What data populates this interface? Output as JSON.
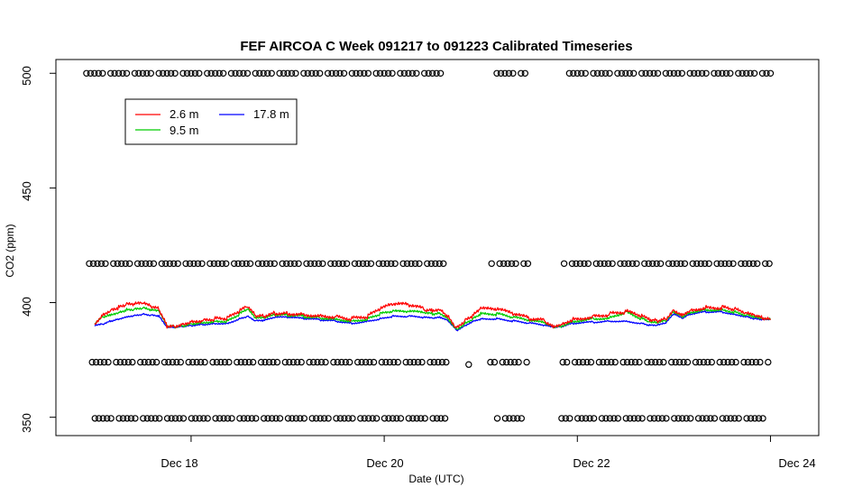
{
  "chart_data": {
    "type": "line",
    "title": "FEF AIRCOA C  Week 091217 to 091223  Calibrated Timeseries",
    "xlabel": "Date (UTC)",
    "ylabel": "CO2 (ppm)",
    "x_unit": "date (UTC)",
    "xlim": [
      "Dec 16 14:24",
      "Dec 24 12:00"
    ],
    "ylim": [
      342,
      506
    ],
    "x_ticks": [
      {
        "t": "Dec 18 00:00",
        "label": "Dec 18"
      },
      {
        "t": "Dec 20 00:00",
        "label": "Dec 20"
      },
      {
        "t": "Dec 22 00:00",
        "label": "Dec 22"
      },
      {
        "t": "Dec 24 00:00",
        "label": "Dec 24"
      }
    ],
    "y_ticks": [
      350,
      400,
      450,
      500
    ],
    "legend": {
      "position": "top-left",
      "entries": [
        {
          "label": "2.6 m",
          "color": "#ff0000"
        },
        {
          "label": "9.5 m",
          "color": "#00cc00"
        },
        {
          "label": "17.8 m",
          "color": "#0000ff"
        }
      ]
    },
    "series": [
      {
        "name": "17.8 m",
        "color": "#0000ff",
        "points": [
          [
            "Dec 17 00:00",
            390
          ],
          [
            "Dec 17 02:00",
            390.5
          ],
          [
            "Dec 17 04:00",
            392
          ],
          [
            "Dec 17 06:00",
            393
          ],
          [
            "Dec 17 08:00",
            394
          ],
          [
            "Dec 17 10:00",
            394.5
          ],
          [
            "Dec 17 12:00",
            395
          ],
          [
            "Dec 17 14:00",
            394.5
          ],
          [
            "Dec 17 16:00",
            394
          ],
          [
            "Dec 17 18:00",
            389
          ],
          [
            "Dec 17 20:00",
            389
          ],
          [
            "Dec 17 22:00",
            389.5
          ],
          [
            "Dec 18 00:00",
            390
          ],
          [
            "Dec 18 03:00",
            390.5
          ],
          [
            "Dec 18 06:00",
            391
          ],
          [
            "Dec 18 09:00",
            391
          ],
          [
            "Dec 18 12:00",
            393
          ],
          [
            "Dec 18 14:00",
            394
          ],
          [
            "Dec 18 16:00",
            392
          ],
          [
            "Dec 18 18:00",
            392
          ],
          [
            "Dec 18 21:00",
            393.5
          ],
          [
            "Dec 19 00:00",
            393.5
          ],
          [
            "Dec 19 04:00",
            393
          ],
          [
            "Dec 19 08:00",
            392.5
          ],
          [
            "Dec 19 12:00",
            392
          ],
          [
            "Dec 19 16:00",
            391
          ],
          [
            "Dec 19 20:00",
            392
          ],
          [
            "Dec 19 23:00",
            393
          ],
          [
            "Dec 20 02:00",
            394
          ],
          [
            "Dec 20 06:00",
            394
          ],
          [
            "Dec 20 10:00",
            393.5
          ],
          [
            "Dec 20 12:00",
            393
          ],
          [
            "Dec 20 14:00",
            393.5
          ],
          [
            "Dec 20 16:00",
            392
          ],
          [
            "Dec 20 18:00",
            388
          ],
          [
            "Dec 20 20:00",
            390
          ],
          [
            "Dec 20 22:00",
            392
          ],
          [
            "Dec 21 00:00",
            393
          ],
          [
            "Dec 21 04:00",
            393
          ],
          [
            "Dec 21 08:00",
            392
          ],
          [
            "Dec 21 12:00",
            391
          ],
          [
            "Dec 21 16:00",
            390
          ],
          [
            "Dec 21 18:00",
            389
          ],
          [
            "Dec 21 20:00",
            389.5
          ],
          [
            "Dec 21 23:00",
            391
          ],
          [
            "Dec 22 04:00",
            391.5
          ],
          [
            "Dec 22 08:00",
            392
          ],
          [
            "Dec 22 12:00",
            392
          ],
          [
            "Dec 22 16:00",
            391
          ],
          [
            "Dec 22 18:00",
            390
          ],
          [
            "Dec 22 20:00",
            390
          ],
          [
            "Dec 22 22:00",
            391
          ],
          [
            "Dec 23 00:00",
            395
          ],
          [
            "Dec 23 02:00",
            393
          ],
          [
            "Dec 23 04:00",
            395
          ],
          [
            "Dec 23 08:00",
            396
          ],
          [
            "Dec 23 12:00",
            396
          ],
          [
            "Dec 23 15:00",
            395
          ],
          [
            "Dec 23 18:00",
            394
          ],
          [
            "Dec 23 20:00",
            393
          ],
          [
            "Dec 23 22:00",
            392.5
          ],
          [
            "Dec 24 00:00",
            392.5
          ]
        ]
      },
      {
        "name": "9.5 m",
        "color": "#00cc00",
        "points": [
          [
            "Dec 17 00:00",
            391
          ],
          [
            "Dec 17 02:00",
            394
          ],
          [
            "Dec 17 04:00",
            395
          ],
          [
            "Dec 17 06:00",
            396
          ],
          [
            "Dec 17 08:00",
            397
          ],
          [
            "Dec 17 10:00",
            397
          ],
          [
            "Dec 17 12:00",
            397.5
          ],
          [
            "Dec 17 14:00",
            396.5
          ],
          [
            "Dec 17 16:00",
            396
          ],
          [
            "Dec 17 18:00",
            389.5
          ],
          [
            "Dec 17 20:00",
            389.5
          ],
          [
            "Dec 17 22:00",
            390
          ],
          [
            "Dec 18 00:00",
            391
          ],
          [
            "Dec 18 03:00",
            391.5
          ],
          [
            "Dec 18 06:00",
            392
          ],
          [
            "Dec 18 09:00",
            392
          ],
          [
            "Dec 18 12:00",
            395
          ],
          [
            "Dec 18 14:00",
            397
          ],
          [
            "Dec 18 16:00",
            393
          ],
          [
            "Dec 18 18:00",
            393
          ],
          [
            "Dec 18 21:00",
            394.5
          ],
          [
            "Dec 19 00:00",
            394.5
          ],
          [
            "Dec 19 04:00",
            394
          ],
          [
            "Dec 19 08:00",
            393.5
          ],
          [
            "Dec 19 12:00",
            393
          ],
          [
            "Dec 19 16:00",
            392
          ],
          [
            "Dec 19 20:00",
            393
          ],
          [
            "Dec 19 23:00",
            395
          ],
          [
            "Dec 20 02:00",
            396
          ],
          [
            "Dec 20 06:00",
            396
          ],
          [
            "Dec 20 10:00",
            395.5
          ],
          [
            "Dec 20 12:00",
            395
          ],
          [
            "Dec 20 14:00",
            395.5
          ],
          [
            "Dec 20 16:00",
            393
          ],
          [
            "Dec 20 18:00",
            388.5
          ],
          [
            "Dec 20 20:00",
            391
          ],
          [
            "Dec 20 22:00",
            393
          ],
          [
            "Dec 21 00:00",
            395
          ],
          [
            "Dec 21 04:00",
            395
          ],
          [
            "Dec 21 08:00",
            393.5
          ],
          [
            "Dec 21 12:00",
            392
          ],
          [
            "Dec 21 16:00",
            391
          ],
          [
            "Dec 21 18:00",
            389.5
          ],
          [
            "Dec 21 20:00",
            390
          ],
          [
            "Dec 21 23:00",
            392
          ],
          [
            "Dec 22 04:00",
            393
          ],
          [
            "Dec 22 08:00",
            393.5
          ],
          [
            "Dec 22 12:00",
            396
          ],
          [
            "Dec 22 16:00",
            393
          ],
          [
            "Dec 22 18:00",
            391
          ],
          [
            "Dec 22 20:00",
            391
          ],
          [
            "Dec 22 22:00",
            392
          ],
          [
            "Dec 23 00:00",
            396
          ],
          [
            "Dec 23 02:00",
            394
          ],
          [
            "Dec 23 04:00",
            396
          ],
          [
            "Dec 23 08:00",
            397
          ],
          [
            "Dec 23 12:00",
            397
          ],
          [
            "Dec 23 15:00",
            396
          ],
          [
            "Dec 23 18:00",
            394.5
          ],
          [
            "Dec 23 20:00",
            393.5
          ],
          [
            "Dec 23 22:00",
            392.5
          ],
          [
            "Dec 24 00:00",
            392.5
          ]
        ]
      },
      {
        "name": "2.6 m",
        "color": "#ff0000",
        "points": [
          [
            "Dec 17 00:00",
            391
          ],
          [
            "Dec 17 02:00",
            395
          ],
          [
            "Dec 17 04:00",
            397
          ],
          [
            "Dec 17 06:00",
            398
          ],
          [
            "Dec 17 08:00",
            399
          ],
          [
            "Dec 17 10:00",
            399
          ],
          [
            "Dec 17 12:00",
            399.5
          ],
          [
            "Dec 17 14:00",
            398
          ],
          [
            "Dec 17 16:00",
            397
          ],
          [
            "Dec 17 18:00",
            390
          ],
          [
            "Dec 17 20:00",
            390
          ],
          [
            "Dec 17 22:00",
            391
          ],
          [
            "Dec 18 00:00",
            392
          ],
          [
            "Dec 18 03:00",
            392.5
          ],
          [
            "Dec 18 06:00",
            393
          ],
          [
            "Dec 18 09:00",
            393
          ],
          [
            "Dec 18 12:00",
            396
          ],
          [
            "Dec 18 14:00",
            398
          ],
          [
            "Dec 18 16:00",
            394
          ],
          [
            "Dec 18 18:00",
            394
          ],
          [
            "Dec 18 21:00",
            395.5
          ],
          [
            "Dec 19 00:00",
            395.5
          ],
          [
            "Dec 19 04:00",
            395
          ],
          [
            "Dec 19 08:00",
            394.5
          ],
          [
            "Dec 19 12:00",
            394
          ],
          [
            "Dec 19 16:00",
            393
          ],
          [
            "Dec 19 20:00",
            394
          ],
          [
            "Dec 19 23:00",
            397
          ],
          [
            "Dec 20 02:00",
            399
          ],
          [
            "Dec 20 06:00",
            399
          ],
          [
            "Dec 20 10:00",
            397
          ],
          [
            "Dec 20 12:00",
            397
          ],
          [
            "Dec 20 14:00",
            397.5
          ],
          [
            "Dec 20 16:00",
            394
          ],
          [
            "Dec 20 18:00",
            389
          ],
          [
            "Dec 20 20:00",
            392
          ],
          [
            "Dec 20 22:00",
            394
          ],
          [
            "Dec 21 00:00",
            397
          ],
          [
            "Dec 21 04:00",
            397
          ],
          [
            "Dec 21 08:00",
            395
          ],
          [
            "Dec 21 12:00",
            393
          ],
          [
            "Dec 21 16:00",
            392
          ],
          [
            "Dec 21 18:00",
            390
          ],
          [
            "Dec 21 20:00",
            391
          ],
          [
            "Dec 21 23:00",
            393
          ],
          [
            "Dec 22 04:00",
            394
          ],
          [
            "Dec 22 08:00",
            395
          ],
          [
            "Dec 22 12:00",
            396
          ],
          [
            "Dec 22 16:00",
            394
          ],
          [
            "Dec 22 18:00",
            392
          ],
          [
            "Dec 22 20:00",
            392
          ],
          [
            "Dec 22 22:00",
            393
          ],
          [
            "Dec 23 00:00",
            397
          ],
          [
            "Dec 23 02:00",
            395
          ],
          [
            "Dec 23 04:00",
            397
          ],
          [
            "Dec 23 08:00",
            398
          ],
          [
            "Dec 23 12:00",
            398
          ],
          [
            "Dec 23 15:00",
            397
          ],
          [
            "Dec 23 18:00",
            395
          ],
          [
            "Dec 23 20:00",
            394
          ],
          [
            "Dec 23 22:00",
            393
          ],
          [
            "Dec 24 00:00",
            392.5
          ]
        ]
      }
    ],
    "calibration_points": {
      "marker": "open circle",
      "levels": [
        500,
        417,
        374,
        349.5
      ],
      "time_span": [
        "Dec 16 22:00",
        "Dec 24 00:00"
      ],
      "gaps": [
        {
          "levels": [
            500,
            417,
            374
          ],
          "from": "Dec 20 16:00",
          "to": "Dec 21 02:00"
        },
        {
          "levels": [
            349.5
          ],
          "from": "Dec 20 16:00",
          "to": "Dec 21 04:00"
        },
        {
          "levels": [
            500,
            417,
            374,
            349.5
          ],
          "from": "Dec 21 12:00",
          "to": "Dec 21 20:00"
        }
      ],
      "extra_points": [
        [
          "Dec 20 21:00",
          373
        ]
      ]
    }
  }
}
